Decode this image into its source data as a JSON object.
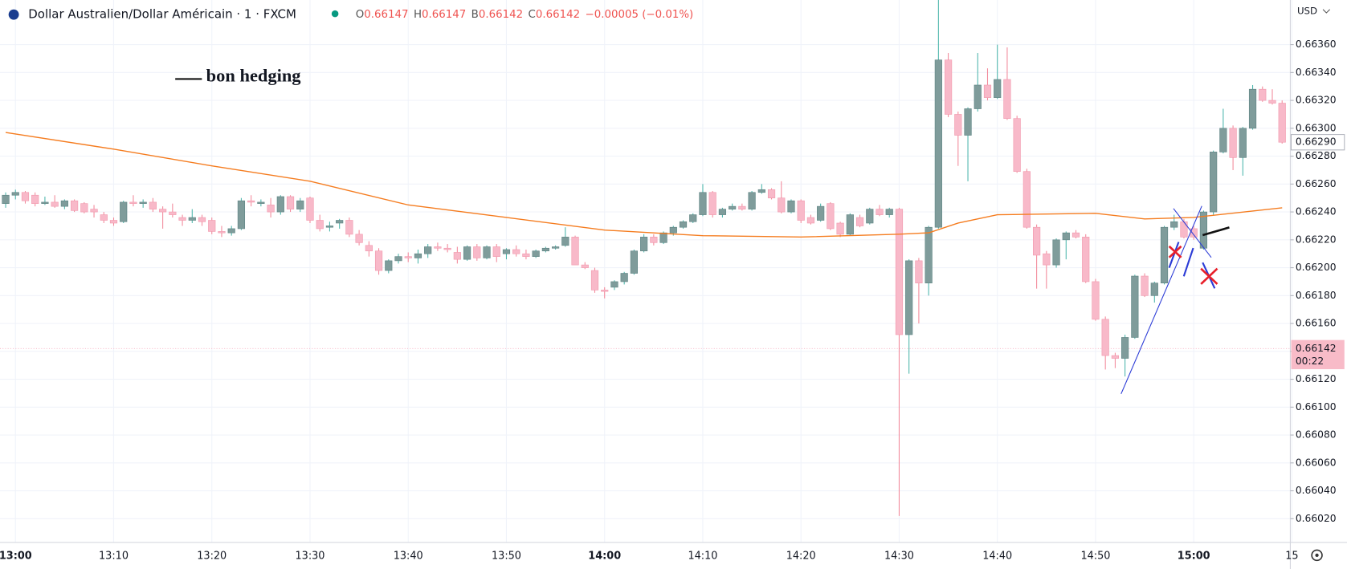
{
  "chart_data": {
    "type": "candlestick",
    "header": {
      "symbol": "Dollar Australien/Dollar Américain · 1 · FXCM",
      "ohlc": [
        {
          "key": "O",
          "value": "0.66147"
        },
        {
          "key": "H",
          "value": "0.66147"
        },
        {
          "key": "B",
          "value": "0.66142"
        },
        {
          "key": "C",
          "value": "0.66142"
        }
      ],
      "change": "−0.00005 (−0.01%)"
    },
    "currency": "USD",
    "annotation": "bon hedging",
    "categories": [
      "12:59",
      "13:00",
      "13:01",
      "13:02",
      "13:03",
      "13:04",
      "13:05",
      "13:06",
      "13:07",
      "13:08",
      "13:09",
      "13:10",
      "13:11",
      "13:12",
      "13:13",
      "13:14",
      "13:15",
      "13:16",
      "13:17",
      "13:18",
      "13:19",
      "13:20",
      "13:21",
      "13:22",
      "13:23",
      "13:24",
      "13:25",
      "13:26",
      "13:27",
      "13:28",
      "13:29",
      "13:30",
      "13:31",
      "13:32",
      "13:33",
      "13:34",
      "13:35",
      "13:36",
      "13:37",
      "13:38",
      "13:39",
      "13:40",
      "13:41",
      "13:42",
      "13:43",
      "13:44",
      "13:45",
      "13:46",
      "13:47",
      "13:48",
      "13:49",
      "13:50",
      "13:51",
      "13:52",
      "13:53",
      "13:54",
      "13:55",
      "13:56",
      "13:57",
      "13:58",
      "13:59",
      "14:00",
      "14:01",
      "14:02",
      "14:03",
      "14:04",
      "14:05",
      "14:06",
      "14:07",
      "14:08",
      "14:09",
      "14:10",
      "14:11",
      "14:12",
      "14:13",
      "14:14",
      "14:15",
      "14:16",
      "14:17",
      "14:18",
      "14:19",
      "14:20",
      "14:21",
      "14:22",
      "14:23",
      "14:24",
      "14:25",
      "14:26",
      "14:27",
      "14:28",
      "14:29",
      "14:30",
      "14:31",
      "14:32",
      "14:33",
      "14:34",
      "14:35",
      "14:36",
      "14:37",
      "14:38",
      "14:39",
      "14:40",
      "14:41",
      "14:42",
      "14:43",
      "14:44",
      "14:45",
      "14:46",
      "14:47",
      "14:48",
      "14:49",
      "14:50",
      "14:51",
      "14:52",
      "14:53",
      "14:54",
      "14:55",
      "14:56",
      "14:57",
      "14:58",
      "14:59",
      "15:00",
      "15:01",
      "15:02",
      "15:03",
      "15:04",
      "15:05",
      "15:06",
      "15:07",
      "15:08",
      "15:09"
    ],
    "candles": [
      [
        0.66246,
        0.66254,
        0.66243,
        0.66252
      ],
      [
        0.66252,
        0.66256,
        0.66249,
        0.66254
      ],
      [
        0.66254,
        0.66255,
        0.66246,
        0.66248
      ],
      [
        0.66252,
        0.66254,
        0.66244,
        0.66246
      ],
      [
        0.66246,
        0.66251,
        0.66245,
        0.66247
      ],
      [
        0.66247,
        0.66252,
        0.66243,
        0.66244
      ],
      [
        0.66244,
        0.66249,
        0.66242,
        0.66248
      ],
      [
        0.66248,
        0.66249,
        0.6624,
        0.66241
      ],
      [
        0.66246,
        0.66247,
        0.66239,
        0.6624
      ],
      [
        0.66242,
        0.66245,
        0.66236,
        0.6624
      ],
      [
        0.66238,
        0.6624,
        0.66232,
        0.66234
      ],
      [
        0.66234,
        0.66236,
        0.6623,
        0.66232
      ],
      [
        0.66233,
        0.66248,
        0.66232,
        0.66247
      ],
      [
        0.66247,
        0.66252,
        0.66244,
        0.66246
      ],
      [
        0.66246,
        0.66249,
        0.66243,
        0.66247
      ],
      [
        0.66247,
        0.6625,
        0.6624,
        0.66242
      ],
      [
        0.66242,
        0.66244,
        0.66228,
        0.6624
      ],
      [
        0.6624,
        0.66246,
        0.66236,
        0.66238
      ],
      [
        0.66236,
        0.66238,
        0.6623,
        0.66234
      ],
      [
        0.66234,
        0.66242,
        0.66232,
        0.66236
      ],
      [
        0.66236,
        0.66238,
        0.6623,
        0.66233
      ],
      [
        0.66234,
        0.66236,
        0.66224,
        0.66226
      ],
      [
        0.66226,
        0.6623,
        0.66222,
        0.66225
      ],
      [
        0.66225,
        0.6623,
        0.66223,
        0.66228
      ],
      [
        0.66228,
        0.6625,
        0.66227,
        0.66248
      ],
      [
        0.66248,
        0.66252,
        0.66244,
        0.66247
      ],
      [
        0.66246,
        0.66249,
        0.66244,
        0.66247
      ],
      [
        0.66245,
        0.6625,
        0.66236,
        0.6624
      ],
      [
        0.6624,
        0.66252,
        0.66238,
        0.66251
      ],
      [
        0.66251,
        0.66252,
        0.6624,
        0.66242
      ],
      [
        0.66242,
        0.6625,
        0.6624,
        0.66248
      ],
      [
        0.6625,
        0.66251,
        0.66232,
        0.66234
      ],
      [
        0.66234,
        0.66238,
        0.66226,
        0.66228
      ],
      [
        0.66229,
        0.66233,
        0.66226,
        0.6623
      ],
      [
        0.66232,
        0.66235,
        0.66228,
        0.66234
      ],
      [
        0.66234,
        0.66236,
        0.66222,
        0.66224
      ],
      [
        0.66224,
        0.66227,
        0.66216,
        0.66218
      ],
      [
        0.66216,
        0.66219,
        0.66208,
        0.66212
      ],
      [
        0.66212,
        0.66214,
        0.66195,
        0.66198
      ],
      [
        0.66198,
        0.66206,
        0.66196,
        0.66205
      ],
      [
        0.66205,
        0.6621,
        0.66203,
        0.66208
      ],
      [
        0.66208,
        0.66211,
        0.66204,
        0.66207
      ],
      [
        0.66207,
        0.66213,
        0.66203,
        0.6621
      ],
      [
        0.6621,
        0.66217,
        0.66207,
        0.66215
      ],
      [
        0.66215,
        0.66218,
        0.66212,
        0.66214
      ],
      [
        0.66214,
        0.66217,
        0.66211,
        0.66213
      ],
      [
        0.66211,
        0.66215,
        0.66203,
        0.66206
      ],
      [
        0.66206,
        0.66216,
        0.66205,
        0.66215
      ],
      [
        0.66215,
        0.66217,
        0.66205,
        0.66207
      ],
      [
        0.66207,
        0.66216,
        0.66206,
        0.66215
      ],
      [
        0.66215,
        0.66217,
        0.66204,
        0.66208
      ],
      [
        0.6621,
        0.66214,
        0.66206,
        0.66213
      ],
      [
        0.66213,
        0.66216,
        0.66208,
        0.6621
      ],
      [
        0.6621,
        0.66213,
        0.66206,
        0.66208
      ],
      [
        0.66208,
        0.66213,
        0.66207,
        0.66212
      ],
      [
        0.66212,
        0.66215,
        0.66211,
        0.66214
      ],
      [
        0.66214,
        0.66216,
        0.66213,
        0.66215
      ],
      [
        0.66216,
        0.66229,
        0.66215,
        0.66222
      ],
      [
        0.66222,
        0.66223,
        0.66202,
        0.66202
      ],
      [
        0.66202,
        0.66204,
        0.66199,
        0.662
      ],
      [
        0.66198,
        0.662,
        0.66182,
        0.66184
      ],
      [
        0.66184,
        0.66186,
        0.66178,
        0.66183
      ],
      [
        0.66186,
        0.66191,
        0.66184,
        0.6619
      ],
      [
        0.6619,
        0.66197,
        0.66188,
        0.66196
      ],
      [
        0.66196,
        0.66213,
        0.66195,
        0.66212
      ],
      [
        0.66212,
        0.66224,
        0.66211,
        0.66222
      ],
      [
        0.66222,
        0.66224,
        0.66216,
        0.66218
      ],
      [
        0.66218,
        0.66226,
        0.66217,
        0.66225
      ],
      [
        0.66225,
        0.6623,
        0.66223,
        0.66229
      ],
      [
        0.66229,
        0.66234,
        0.66228,
        0.66233
      ],
      [
        0.66233,
        0.66239,
        0.66232,
        0.66238
      ],
      [
        0.66238,
        0.6626,
        0.66237,
        0.66254
      ],
      [
        0.66254,
        0.66255,
        0.66236,
        0.66238
      ],
      [
        0.66238,
        0.66243,
        0.66236,
        0.66242
      ],
      [
        0.66242,
        0.66246,
        0.66241,
        0.66244
      ],
      [
        0.66244,
        0.66246,
        0.66241,
        0.66242
      ],
      [
        0.66242,
        0.66255,
        0.66241,
        0.66254
      ],
      [
        0.66254,
        0.6626,
        0.66253,
        0.66256
      ],
      [
        0.66256,
        0.66257,
        0.66249,
        0.6625
      ],
      [
        0.6625,
        0.66262,
        0.66239,
        0.6624
      ],
      [
        0.6624,
        0.66249,
        0.66239,
        0.66248
      ],
      [
        0.66248,
        0.66249,
        0.66232,
        0.66234
      ],
      [
        0.66236,
        0.66238,
        0.66231,
        0.66232
      ],
      [
        0.66234,
        0.66246,
        0.66233,
        0.66244
      ],
      [
        0.66246,
        0.66247,
        0.66227,
        0.66228
      ],
      [
        0.66232,
        0.66233,
        0.66222,
        0.66224
      ],
      [
        0.66224,
        0.66239,
        0.66223,
        0.66238
      ],
      [
        0.66236,
        0.66238,
        0.66229,
        0.6623
      ],
      [
        0.66232,
        0.66243,
        0.66231,
        0.66242
      ],
      [
        0.66242,
        0.66245,
        0.66237,
        0.66238
      ],
      [
        0.66238,
        0.66243,
        0.66236,
        0.66242
      ],
      [
        0.66242,
        0.66243,
        0.66022,
        0.66152
      ],
      [
        0.66152,
        0.66206,
        0.66124,
        0.66205
      ],
      [
        0.66205,
        0.66207,
        0.6616,
        0.66189
      ],
      [
        0.66189,
        0.6623,
        0.6618,
        0.66229
      ],
      [
        0.66229,
        0.66395,
        0.66228,
        0.66349
      ],
      [
        0.66349,
        0.66354,
        0.66308,
        0.6631
      ],
      [
        0.6631,
        0.66312,
        0.66273,
        0.66295
      ],
      [
        0.66295,
        0.66315,
        0.66262,
        0.66314
      ],
      [
        0.66314,
        0.66354,
        0.66312,
        0.66331
      ],
      [
        0.66331,
        0.66343,
        0.6632,
        0.66322
      ],
      [
        0.66322,
        0.6636,
        0.66321,
        0.66335
      ],
      [
        0.66335,
        0.66358,
        0.66306,
        0.66307
      ],
      [
        0.66307,
        0.66309,
        0.66268,
        0.66269
      ],
      [
        0.66269,
        0.66271,
        0.66228,
        0.66229
      ],
      [
        0.66229,
        0.66231,
        0.66185,
        0.66209
      ],
      [
        0.6621,
        0.66212,
        0.66185,
        0.66202
      ],
      [
        0.66202,
        0.66221,
        0.662,
        0.6622
      ],
      [
        0.6622,
        0.66226,
        0.66206,
        0.66225
      ],
      [
        0.66225,
        0.66227,
        0.66221,
        0.66222
      ],
      [
        0.66222,
        0.66224,
        0.66189,
        0.6619
      ],
      [
        0.6619,
        0.66192,
        0.66162,
        0.66163
      ],
      [
        0.66163,
        0.66165,
        0.66127,
        0.66137
      ],
      [
        0.66137,
        0.66139,
        0.66128,
        0.66135
      ],
      [
        0.66135,
        0.66152,
        0.66122,
        0.6615
      ],
      [
        0.6615,
        0.66195,
        0.66149,
        0.66194
      ],
      [
        0.66194,
        0.66196,
        0.66179,
        0.6618
      ],
      [
        0.6618,
        0.6619,
        0.66175,
        0.66189
      ],
      [
        0.66189,
        0.6623,
        0.66188,
        0.66229
      ],
      [
        0.66229,
        0.66238,
        0.66227,
        0.66233
      ],
      [
        0.66233,
        0.66235,
        0.66221,
        0.66222
      ],
      [
        0.66228,
        0.6623,
        0.6622,
        0.66222
      ],
      [
        0.66214,
        0.66241,
        0.66213,
        0.6624
      ],
      [
        0.6624,
        0.66284,
        0.66238,
        0.66283
      ],
      [
        0.66283,
        0.66314,
        0.66282,
        0.663
      ],
      [
        0.663,
        0.66302,
        0.6627,
        0.66279
      ],
      [
        0.66279,
        0.66301,
        0.66266,
        0.663
      ],
      [
        0.663,
        0.66331,
        0.66299,
        0.66328
      ],
      [
        0.66328,
        0.6633,
        0.66319,
        0.6632
      ],
      [
        0.6632,
        0.66328,
        0.66317,
        0.66318
      ],
      [
        0.66318,
        0.6632,
        0.66289,
        0.6629
      ]
    ],
    "up_color": "#7f9c9b",
    "down_color": "#f8b9c9",
    "up_wick": "#4db6ac",
    "down_wick": "#f28a9b",
    "ma": {
      "color": "#f57c1f",
      "x": [
        "12:59",
        "13:10",
        "13:20",
        "13:30",
        "13:40",
        "13:50",
        "14:00",
        "14:10",
        "14:20",
        "14:30",
        "14:33",
        "14:36",
        "14:40",
        "14:50",
        "14:55",
        "15:00",
        "15:09"
      ],
      "values": [
        0.66297,
        0.66285,
        0.66273,
        0.66262,
        0.66245,
        0.66236,
        0.66227,
        0.66223,
        0.66222,
        0.66224,
        0.66225,
        0.66232,
        0.66238,
        0.66239,
        0.66235,
        0.66236,
        0.66243
      ]
    },
    "ylim": [
      0.66003,
      0.66392
    ],
    "yticks": [
      {
        "value": 0.6602,
        "label": "0.66020"
      },
      {
        "value": 0.6604,
        "label": "0.66040"
      },
      {
        "value": 0.6606,
        "label": "0.66060"
      },
      {
        "value": 0.6608,
        "label": "0.66080"
      },
      {
        "value": 0.661,
        "label": "0.66100"
      },
      {
        "value": 0.6612,
        "label": "0.66120"
      },
      {
        "value": 0.6614,
        "label": "0.66140"
      },
      {
        "value": 0.6616,
        "label": "0.66160"
      },
      {
        "value": 0.6618,
        "label": "0.66180"
      },
      {
        "value": 0.662,
        "label": "0.66200"
      },
      {
        "value": 0.6622,
        "label": "0.66220"
      },
      {
        "value": 0.6624,
        "label": "0.66240"
      },
      {
        "value": 0.6626,
        "label": "0.66260"
      },
      {
        "value": 0.6628,
        "label": "0.66280"
      },
      {
        "value": 0.663,
        "label": "0.66300"
      },
      {
        "value": 0.6632,
        "label": "0.66320"
      },
      {
        "value": 0.6634,
        "label": "0.66340"
      },
      {
        "value": 0.6636,
        "label": "0.66360"
      }
    ],
    "xticks": [
      {
        "value": "13:00",
        "label": "13:00"
      },
      {
        "value": "13:10",
        "label": "13:10"
      },
      {
        "value": "13:20",
        "label": "13:20"
      },
      {
        "value": "13:30",
        "label": "13:30"
      },
      {
        "value": "13:40",
        "label": "13:40"
      },
      {
        "value": "13:50",
        "label": "13:50"
      },
      {
        "value": "14:00",
        "label": "14:00"
      },
      {
        "value": "14:10",
        "label": "14:10"
      },
      {
        "value": "14:20",
        "label": "14:20"
      },
      {
        "value": "14:30",
        "label": "14:30"
      },
      {
        "value": "14:40",
        "label": "14:40"
      },
      {
        "value": "14:50",
        "label": "14:50"
      },
      {
        "value": "15:00",
        "label": "15:00"
      },
      {
        "value": "15:10",
        "label": "15"
      }
    ],
    "price_labels": [
      {
        "value": 0.6629,
        "label": "0.66290"
      },
      {
        "value": 0.66142,
        "label": "0.66142",
        "countdown": "00:22"
      }
    ],
    "grid": true
  }
}
